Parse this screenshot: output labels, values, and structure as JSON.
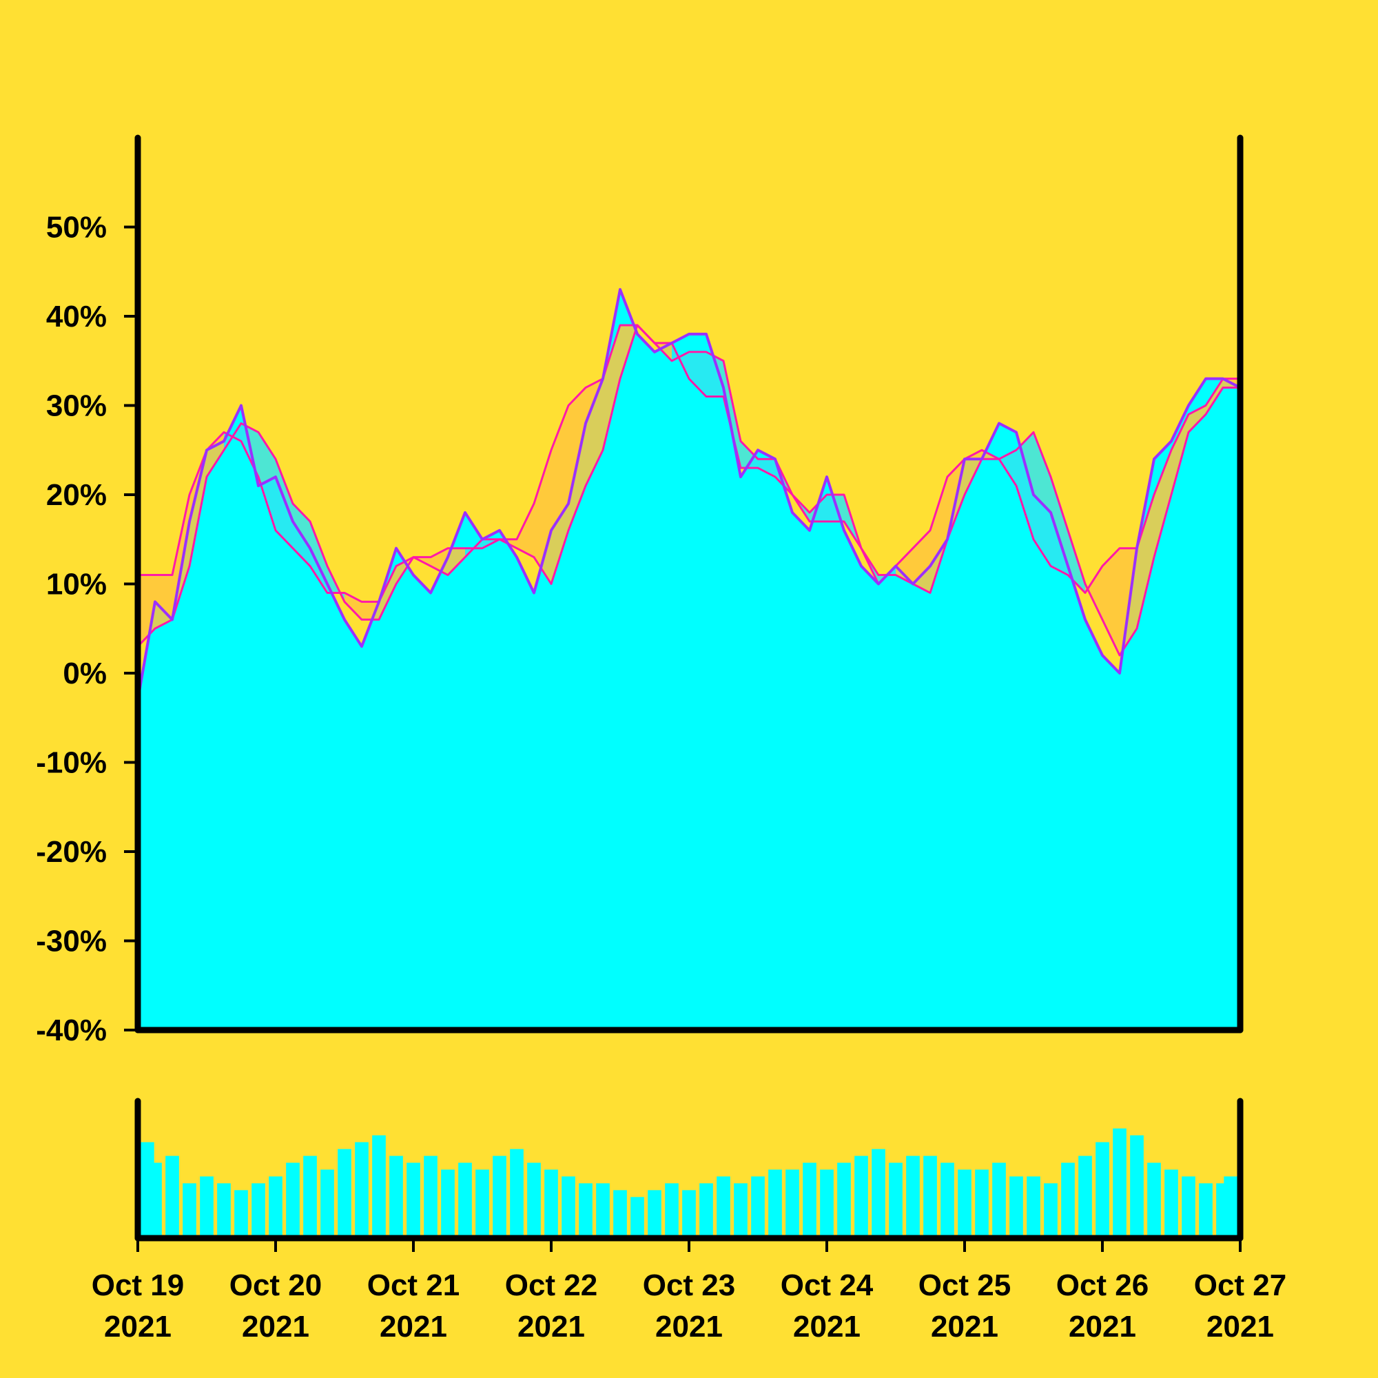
{
  "chart_data": {
    "type": "area",
    "x": [
      "2021-10-19T00:00",
      "2021-10-19T03:00",
      "2021-10-19T06:00",
      "2021-10-19T09:00",
      "2021-10-19T12:00",
      "2021-10-19T15:00",
      "2021-10-19T18:00",
      "2021-10-19T21:00",
      "2021-10-20T00:00",
      "2021-10-20T03:00",
      "2021-10-20T06:00",
      "2021-10-20T09:00",
      "2021-10-20T12:00",
      "2021-10-20T15:00",
      "2021-10-20T18:00",
      "2021-10-20T21:00",
      "2021-10-21T00:00",
      "2021-10-21T03:00",
      "2021-10-21T06:00",
      "2021-10-21T09:00",
      "2021-10-21T12:00",
      "2021-10-21T15:00",
      "2021-10-21T18:00",
      "2021-10-21T21:00",
      "2021-10-22T00:00",
      "2021-10-22T03:00",
      "2021-10-22T06:00",
      "2021-10-22T09:00",
      "2021-10-22T12:00",
      "2021-10-22T15:00",
      "2021-10-22T18:00",
      "2021-10-22T21:00",
      "2021-10-23T00:00",
      "2021-10-23T03:00",
      "2021-10-23T06:00",
      "2021-10-23T09:00",
      "2021-10-23T12:00",
      "2021-10-23T15:00",
      "2021-10-23T18:00",
      "2021-10-23T21:00",
      "2021-10-24T00:00",
      "2021-10-24T03:00",
      "2021-10-24T06:00",
      "2021-10-24T09:00",
      "2021-10-24T12:00",
      "2021-10-24T15:00",
      "2021-10-24T18:00",
      "2021-10-24T21:00",
      "2021-10-25T00:00",
      "2021-10-25T03:00",
      "2021-10-25T06:00",
      "2021-10-25T09:00",
      "2021-10-25T12:00",
      "2021-10-25T15:00",
      "2021-10-25T18:00",
      "2021-10-25T21:00",
      "2021-10-26T00:00",
      "2021-10-26T03:00",
      "2021-10-26T06:00",
      "2021-10-26T09:00",
      "2021-10-26T12:00",
      "2021-10-26T15:00",
      "2021-10-26T18:00",
      "2021-10-26T21:00",
      "2021-10-27T00:00"
    ],
    "series": [
      {
        "color": "#9b30ff",
        "fill": "#00ffff",
        "values": [
          -3,
          8,
          6,
          17,
          25,
          26,
          30,
          21,
          22,
          17,
          14,
          10,
          6,
          3,
          8,
          14,
          11,
          9,
          13,
          18,
          15,
          16,
          13,
          9,
          16,
          19,
          28,
          33,
          43,
          38,
          36,
          37,
          38,
          38,
          32,
          22,
          25,
          24,
          18,
          16,
          22,
          16,
          12,
          10,
          12,
          10,
          12,
          15,
          24,
          24,
          28,
          27,
          20,
          18,
          12,
          6,
          2,
          0,
          14,
          24,
          26,
          30,
          33,
          33,
          32
        ]
      },
      {
        "color": "#ff1aa8",
        "values": [
          3,
          5,
          6,
          12,
          22,
          25,
          28,
          27,
          24,
          19,
          17,
          12,
          8,
          6,
          6,
          10,
          13,
          12,
          11,
          13,
          15,
          15,
          14,
          13,
          10,
          16,
          21,
          25,
          33,
          39,
          37,
          35,
          36,
          36,
          35,
          26,
          24,
          24,
          20,
          18,
          20,
          20,
          14,
          11,
          11,
          10,
          9,
          15,
          20,
          24,
          24,
          25,
          27,
          22,
          16,
          10,
          6,
          2,
          5,
          13,
          20,
          27,
          29,
          32,
          32
        ]
      },
      {
        "color": "#ff1aa8",
        "values": [
          11,
          11,
          11,
          20,
          25,
          27,
          26,
          22,
          16,
          14,
          12,
          9,
          9,
          8,
          8,
          12,
          13,
          13,
          14,
          14,
          14,
          15,
          15,
          19,
          25,
          30,
          32,
          33,
          39,
          39,
          37,
          37,
          33,
          31,
          31,
          23,
          23,
          22,
          20,
          17,
          17,
          17,
          14,
          10,
          12,
          14,
          16,
          22,
          24,
          25,
          24,
          21,
          15,
          12,
          11,
          9,
          12,
          14,
          14,
          20,
          25,
          29,
          30,
          33,
          33
        ]
      }
    ],
    "band_colors": {
      "above": "#2ee6f0",
      "below": "#ffc53d"
    },
    "volume": {
      "color": "#00ffff",
      "ylim": [
        0,
        100
      ],
      "values": [
        70,
        55,
        60,
        40,
        45,
        40,
        35,
        40,
        45,
        55,
        60,
        50,
        65,
        70,
        75,
        60,
        55,
        60,
        50,
        55,
        50,
        60,
        65,
        55,
        50,
        45,
        40,
        40,
        35,
        30,
        35,
        40,
        35,
        40,
        45,
        40,
        45,
        50,
        50,
        55,
        50,
        55,
        60,
        65,
        55,
        60,
        60,
        55,
        50,
        50,
        55,
        45,
        45,
        40,
        55,
        60,
        70,
        80,
        75,
        55,
        50,
        45,
        40,
        40,
        45
      ]
    },
    "xlim": [
      "2021-10-19T00:00",
      "2021-10-27T00:00"
    ],
    "xticks": [
      {
        "value": "2021-10-19T00:00",
        "label": "Oct 19 2021"
      },
      {
        "value": "2021-10-20T00:00",
        "label": "Oct 20 2021"
      },
      {
        "value": "2021-10-21T00:00",
        "label": "Oct 21 2021"
      },
      {
        "value": "2021-10-22T00:00",
        "label": "Oct 22 2021"
      },
      {
        "value": "2021-10-23T00:00",
        "label": "Oct 23 2021"
      },
      {
        "value": "2021-10-24T00:00",
        "label": "Oct 24 2021"
      },
      {
        "value": "2021-10-25T00:00",
        "label": "Oct 25 2021"
      },
      {
        "value": "2021-10-26T00:00",
        "label": "Oct 26 2021"
      },
      {
        "value": "2021-10-27T00:00",
        "label": "Oct 27 2021"
      }
    ],
    "ylim": [
      -40,
      60
    ],
    "yticks": [
      {
        "value": -40,
        "label": "-40%"
      },
      {
        "value": -30,
        "label": "-30%"
      },
      {
        "value": -20,
        "label": "-20%"
      },
      {
        "value": -10,
        "label": "-10%"
      },
      {
        "value": 0,
        "label": "0%"
      },
      {
        "value": 10,
        "label": "10%"
      },
      {
        "value": 20,
        "label": "20%"
      },
      {
        "value": 30,
        "label": "30%"
      },
      {
        "value": 40,
        "label": "40%"
      },
      {
        "value": 50,
        "label": "50%"
      }
    ],
    "grid": false
  }
}
